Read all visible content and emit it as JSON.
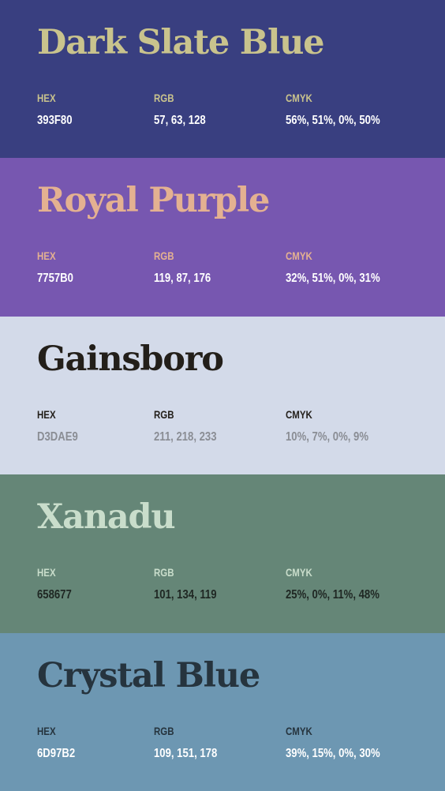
{
  "labels": {
    "hex": "HEX",
    "rgb": "RGB",
    "cmyk": "CMYK"
  },
  "swatches": [
    {
      "name": "Dark Slate Blue",
      "hex": "393F80",
      "rgb": "57, 63, 128",
      "cmyk": "56%, 51%, 0%, 50%",
      "colors": {
        "background": "#393F80",
        "title": "#C9C38D",
        "label": "#C9C38D",
        "value": "#FFFFFF"
      }
    },
    {
      "name": "Royal Purple",
      "hex": "7757B0",
      "rgb": "119, 87, 176",
      "cmyk": "32%, 51%, 0%, 31%",
      "colors": {
        "background": "#7757B0",
        "title": "#E4B191",
        "label": "#E4B191",
        "value": "#FFFFFF"
      }
    },
    {
      "name": "Gainsboro",
      "hex": "D3DAE9",
      "rgb": "211, 218, 233",
      "cmyk": "10%, 7%, 0%, 9%",
      "colors": {
        "background": "#D3DAE9",
        "title": "#231F1A",
        "label": "#231F1A",
        "value": "#8A8D94"
      }
    },
    {
      "name": "Xanadu",
      "hex": "658677",
      "rgb": "101, 134, 119",
      "cmyk": "25%, 0%, 11%, 48%",
      "colors": {
        "background": "#658677",
        "title": "#C9DDCB",
        "label": "#C9DDCB",
        "value": "#1F2723"
      }
    },
    {
      "name": "Crystal Blue",
      "hex": "6D97B2",
      "rgb": "109, 151, 178",
      "cmyk": "39%, 15%, 0%, 30%",
      "colors": {
        "background": "#6D97B2",
        "title": "#26343E",
        "label": "#26343E",
        "value": "#FFFFFF"
      }
    }
  ]
}
